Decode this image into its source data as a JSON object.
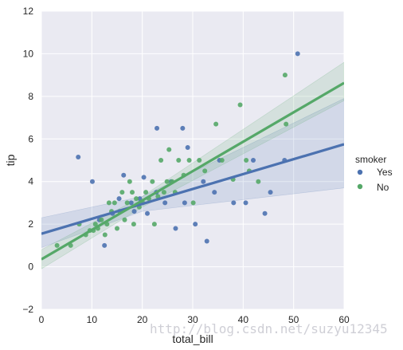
{
  "chart_data": {
    "type": "scatter",
    "title": "",
    "xlabel": "total_bill",
    "ylabel": "tip",
    "xlim": [
      0,
      60
    ],
    "ylim": [
      -2,
      12
    ],
    "x_ticks": [
      "0",
      "10",
      "20",
      "30",
      "40",
      "50",
      "60"
    ],
    "y_ticks": [
      "−2",
      "0",
      "2",
      "4",
      "6",
      "8",
      "10",
      "12"
    ],
    "grid": true,
    "legend": {
      "title": "smoker",
      "placement": "right"
    },
    "series": [
      {
        "name": "Yes",
        "color": "#4c72b0",
        "fit": {
          "intercept": 1.55,
          "slope": 0.07
        },
        "band": {
          "lower": [
            [
              0,
              0.9
            ],
            [
              20,
              2.6
            ],
            [
              60,
              3.7
            ]
          ],
          "upper": [
            [
              0,
              2.3
            ],
            [
              20,
              3.3
            ],
            [
              60,
              7.9
            ]
          ]
        },
        "points": [
          [
            7.3,
            5.15
          ],
          [
            10.1,
            4.0
          ],
          [
            11.5,
            2.2
          ],
          [
            12.5,
            1.0
          ],
          [
            14.1,
            2.5
          ],
          [
            15.4,
            3.2
          ],
          [
            16.3,
            4.3
          ],
          [
            17.8,
            3.0
          ],
          [
            18.4,
            2.6
          ],
          [
            19.5,
            3.2
          ],
          [
            20.3,
            4.2
          ],
          [
            21.0,
            2.5
          ],
          [
            22.8,
            3.5
          ],
          [
            22.9,
            6.5
          ],
          [
            24.5,
            3.0
          ],
          [
            25.7,
            4.0
          ],
          [
            26.6,
            1.8
          ],
          [
            28.0,
            6.5
          ],
          [
            28.4,
            3.0
          ],
          [
            29.0,
            5.6
          ],
          [
            30.5,
            2.0
          ],
          [
            32.1,
            4.0
          ],
          [
            32.8,
            1.2
          ],
          [
            34.3,
            3.5
          ],
          [
            35.3,
            5.0
          ],
          [
            38.1,
            3.0
          ],
          [
            40.5,
            3.0
          ],
          [
            42.0,
            5.0
          ],
          [
            44.3,
            2.5
          ],
          [
            45.4,
            3.5
          ],
          [
            48.2,
            5.0
          ],
          [
            50.8,
            10.0
          ]
        ]
      },
      {
        "name": "No",
        "color": "#55a868",
        "fit": {
          "intercept": 0.35,
          "slope": 0.138
        },
        "band": {
          "lower": [
            [
              0,
              -0.1
            ],
            [
              20,
              2.8
            ],
            [
              60,
              7.8
            ]
          ],
          "upper": [
            [
              0,
              0.8
            ],
            [
              20,
              3.3
            ],
            [
              60,
              9.6
            ]
          ]
        },
        "points": [
          [
            3.1,
            1.0
          ],
          [
            5.8,
            1.0
          ],
          [
            7.5,
            2.0
          ],
          [
            8.8,
            1.5
          ],
          [
            9.6,
            1.7
          ],
          [
            10.3,
            1.7
          ],
          [
            10.7,
            2.0
          ],
          [
            11.2,
            1.8
          ],
          [
            11.9,
            2.2
          ],
          [
            12.6,
            1.5
          ],
          [
            13.0,
            2.0
          ],
          [
            13.4,
            3.0
          ],
          [
            13.9,
            2.6
          ],
          [
            14.5,
            3.0
          ],
          [
            15.0,
            1.8
          ],
          [
            15.5,
            2.6
          ],
          [
            16.0,
            3.5
          ],
          [
            16.5,
            2.2
          ],
          [
            17.0,
            3.0
          ],
          [
            17.5,
            4.0
          ],
          [
            18.0,
            3.5
          ],
          [
            18.3,
            2.0
          ],
          [
            18.8,
            3.2
          ],
          [
            19.4,
            2.8
          ],
          [
            20.1,
            3.0
          ],
          [
            20.7,
            3.5
          ],
          [
            21.3,
            3.2
          ],
          [
            22.0,
            4.0
          ],
          [
            22.4,
            2.0
          ],
          [
            23.1,
            3.3
          ],
          [
            23.7,
            5.0
          ],
          [
            24.3,
            3.5
          ],
          [
            24.9,
            4.0
          ],
          [
            25.3,
            5.5
          ],
          [
            25.9,
            4.0
          ],
          [
            26.5,
            3.5
          ],
          [
            27.2,
            5.0
          ],
          [
            28.2,
            4.3
          ],
          [
            29.3,
            5.0
          ],
          [
            30.1,
            3.0
          ],
          [
            31.3,
            5.0
          ],
          [
            32.4,
            4.5
          ],
          [
            34.6,
            6.7
          ],
          [
            35.8,
            5.0
          ],
          [
            38.0,
            4.1
          ],
          [
            39.4,
            7.6
          ],
          [
            40.6,
            5.0
          ],
          [
            41.2,
            4.5
          ],
          [
            43.0,
            4.0
          ],
          [
            48.3,
            9.0
          ],
          [
            48.5,
            6.7
          ]
        ]
      }
    ]
  },
  "watermark": "http://blog.csdn.net/suzyu12345"
}
